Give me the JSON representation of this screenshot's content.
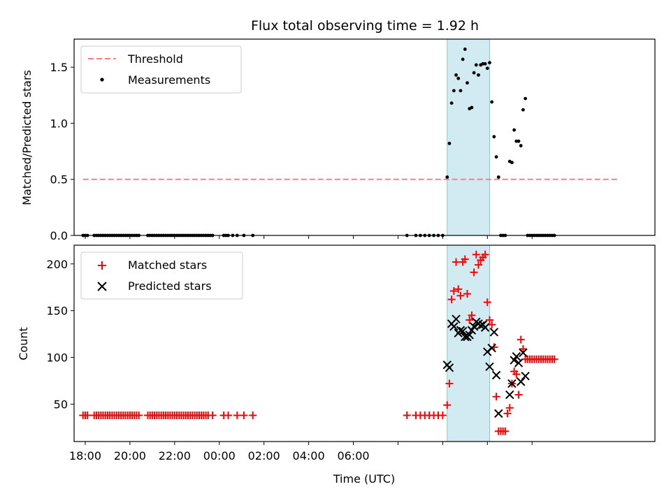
{
  "chart_data": [
    {
      "type": "scatter",
      "title": "Flux total observing time = 1.92 h",
      "xlabel": "",
      "ylabel": "Matched/Predicted stars",
      "xlim": [
        -6.5,
        19.5
      ],
      "ylim": [
        0,
        1.75
      ],
      "yticks": [
        0,
        0.5,
        1.0,
        1.5
      ],
      "ytick_labels": [
        "0.0",
        "0.5",
        "1.0",
        "1.5"
      ],
      "legend_position": "top-left",
      "shaded_span": {
        "x_start": 10.2,
        "x_end": 12.1,
        "color": "#add8e6"
      },
      "threshold": {
        "name": "Threshold",
        "value": 0.5,
        "x_start": -6.1,
        "x_end": 17.9,
        "color": "#ff7f7f",
        "style": "dashed"
      },
      "series": [
        {
          "name": "Measurements",
          "color": "#000000",
          "marker": "dot",
          "points": [
            [
              -6.1,
              0
            ],
            [
              -6.0,
              0
            ],
            [
              -5.9,
              0
            ],
            [
              -5.6,
              0
            ],
            [
              -5.5,
              0
            ],
            [
              -5.4,
              0
            ],
            [
              -5.3,
              0
            ],
            [
              -5.2,
              0
            ],
            [
              -5.1,
              0
            ],
            [
              -5.0,
              0
            ],
            [
              -4.9,
              0
            ],
            [
              -4.8,
              0
            ],
            [
              -4.7,
              0
            ],
            [
              -4.6,
              0
            ],
            [
              -4.5,
              0
            ],
            [
              -4.4,
              0
            ],
            [
              -4.3,
              0
            ],
            [
              -4.2,
              0
            ],
            [
              -4.1,
              0
            ],
            [
              -4.0,
              0
            ],
            [
              -3.9,
              0
            ],
            [
              -3.8,
              0
            ],
            [
              -3.7,
              0
            ],
            [
              -3.6,
              0
            ],
            [
              -3.2,
              0
            ],
            [
              -3.1,
              0
            ],
            [
              -3.0,
              0
            ],
            [
              -2.9,
              0
            ],
            [
              -2.6,
              0
            ],
            [
              -2.5,
              0
            ],
            [
              -2.4,
              0
            ],
            [
              -2.3,
              0
            ],
            [
              -2.2,
              0
            ],
            [
              -2.1,
              0
            ],
            [
              -2.0,
              0
            ],
            [
              -1.9,
              0
            ],
            [
              -1.8,
              0
            ],
            [
              -1.7,
              0
            ],
            [
              -1.6,
              0
            ],
            [
              -1.5,
              0
            ],
            [
              -1.4,
              0
            ],
            [
              -1.3,
              0
            ],
            [
              -1.2,
              0
            ],
            [
              -1.1,
              0
            ],
            [
              -1.0,
              0
            ],
            [
              -0.9,
              0
            ],
            [
              -0.7,
              0
            ],
            [
              -0.5,
              0
            ],
            [
              -0.3,
              0
            ],
            [
              -2.7,
              0
            ],
            [
              0.2,
              0
            ],
            [
              0.3,
              0
            ],
            [
              0.4,
              0
            ],
            [
              0.6,
              0
            ],
            [
              0.8,
              0
            ],
            [
              -0.6,
              0
            ],
            [
              -0.4,
              0
            ],
            [
              -0.8,
              0
            ],
            [
              1.1,
              0
            ],
            [
              1.5,
              0
            ],
            [
              8.4,
              0
            ],
            [
              8.8,
              0
            ],
            [
              9.0,
              0
            ],
            [
              9.2,
              0
            ],
            [
              9.4,
              0
            ],
            [
              9.6,
              0
            ],
            [
              9.8,
              0
            ],
            [
              10.0,
              0
            ],
            [
              -2.8,
              0
            ],
            [
              10.2,
              0.52
            ],
            [
              10.3,
              0.82
            ],
            [
              10.4,
              1.18
            ],
            [
              10.5,
              1.29
            ],
            [
              10.6,
              1.43
            ],
            [
              10.7,
              1.4
            ],
            [
              10.8,
              1.29
            ],
            [
              10.9,
              1.57
            ],
            [
              11.0,
              1.66
            ],
            [
              11.1,
              1.36
            ],
            [
              11.2,
              1.13
            ],
            [
              11.3,
              1.14
            ],
            [
              11.4,
              1.45
            ],
            [
              11.5,
              1.52
            ],
            [
              11.6,
              1.43
            ],
            [
              11.7,
              1.52
            ],
            [
              11.8,
              1.53
            ],
            [
              11.9,
              1.53
            ],
            [
              12.0,
              1.49
            ],
            [
              12.1,
              1.54
            ],
            [
              12.2,
              1.19
            ],
            [
              12.3,
              0.88
            ],
            [
              12.4,
              0.7
            ],
            [
              12.5,
              0.52
            ],
            [
              12.6,
              0
            ],
            [
              12.7,
              0
            ],
            [
              12.8,
              0
            ],
            [
              13.0,
              0.66
            ],
            [
              13.1,
              0.65
            ],
            [
              13.2,
              0.94
            ],
            [
              13.3,
              0.84
            ],
            [
              13.4,
              0.84
            ],
            [
              13.5,
              0.8
            ],
            [
              13.6,
              1.12
            ],
            [
              13.7,
              1.22
            ],
            [
              13.8,
              0
            ],
            [
              13.9,
              0
            ],
            [
              14.0,
              0
            ],
            [
              14.1,
              0
            ],
            [
              14.2,
              0
            ],
            [
              14.3,
              0
            ],
            [
              14.4,
              0
            ],
            [
              14.5,
              0
            ],
            [
              14.6,
              0
            ],
            [
              14.7,
              0
            ],
            [
              14.8,
              0
            ],
            [
              14.9,
              0
            ],
            [
              15.0,
              0
            ]
          ]
        }
      ]
    },
    {
      "type": "scatter",
      "title": "",
      "xlabel": "Time (UTC)",
      "ylabel": "Count",
      "xlim": [
        -6.5,
        19.5
      ],
      "ylim": [
        10,
        220
      ],
      "yticks": [
        50,
        100,
        150,
        200
      ],
      "ytick_labels": [
        "50",
        "100",
        "150",
        "200"
      ],
      "xticks": [
        -6,
        -4,
        -2,
        0,
        2,
        4,
        6,
        8,
        10,
        12,
        14
      ],
      "xtick_labels": [
        "18:00",
        "20:00",
        "22:00",
        "00:00",
        "02:00",
        "04:00",
        "06:00"
      ],
      "xtick_label_positions": [
        -6,
        -4,
        -2,
        0,
        2,
        4,
        6
      ],
      "legend_position": "top-left",
      "shaded_span": {
        "x_start": 10.2,
        "x_end": 12.1,
        "color": "#add8e6"
      },
      "series": [
        {
          "name": "Matched stars",
          "color": "#ff0000",
          "marker": "plus",
          "points": [
            [
              -6.1,
              38
            ],
            [
              -6.0,
              38
            ],
            [
              -5.9,
              38
            ],
            [
              -5.6,
              38
            ],
            [
              -5.5,
              38
            ],
            [
              -5.4,
              38
            ],
            [
              -5.3,
              38
            ],
            [
              -5.2,
              38
            ],
            [
              -5.1,
              38
            ],
            [
              -5.0,
              38
            ],
            [
              -4.9,
              38
            ],
            [
              -4.8,
              38
            ],
            [
              -4.7,
              38
            ],
            [
              -4.6,
              38
            ],
            [
              -4.5,
              38
            ],
            [
              -4.4,
              38
            ],
            [
              -4.3,
              38
            ],
            [
              -4.2,
              38
            ],
            [
              -4.1,
              38
            ],
            [
              -4.0,
              38
            ],
            [
              -3.9,
              38
            ],
            [
              -3.8,
              38
            ],
            [
              -3.7,
              38
            ],
            [
              -3.6,
              38
            ],
            [
              -3.2,
              38
            ],
            [
              -3.1,
              38
            ],
            [
              -3.0,
              38
            ],
            [
              -2.9,
              38
            ],
            [
              -2.8,
              38
            ],
            [
              -2.7,
              38
            ],
            [
              -2.6,
              38
            ],
            [
              -2.5,
              38
            ],
            [
              -2.4,
              38
            ],
            [
              -2.3,
              38
            ],
            [
              -2.2,
              38
            ],
            [
              -2.1,
              38
            ],
            [
              -2.0,
              38
            ],
            [
              -1.9,
              38
            ],
            [
              -1.8,
              38
            ],
            [
              -1.7,
              38
            ],
            [
              -1.6,
              38
            ],
            [
              -1.5,
              38
            ],
            [
              -1.4,
              38
            ],
            [
              -1.3,
              38
            ],
            [
              -1.2,
              38
            ],
            [
              -1.1,
              38
            ],
            [
              -1.0,
              38
            ],
            [
              -0.9,
              38
            ],
            [
              -0.8,
              38
            ],
            [
              -0.7,
              38
            ],
            [
              -0.6,
              38
            ],
            [
              -0.5,
              38
            ],
            [
              -0.3,
              38
            ],
            [
              0.2,
              38
            ],
            [
              0.4,
              38
            ],
            [
              0.8,
              38
            ],
            [
              1.1,
              38
            ],
            [
              1.5,
              38
            ],
            [
              8.4,
              38
            ],
            [
              8.8,
              38
            ],
            [
              9.0,
              38
            ],
            [
              9.2,
              38
            ],
            [
              9.4,
              38
            ],
            [
              9.6,
              38
            ],
            [
              9.8,
              38
            ],
            [
              10.0,
              38
            ],
            [
              10.2,
              49
            ],
            [
              10.3,
              72
            ],
            [
              10.4,
              162
            ],
            [
              10.5,
              171
            ],
            [
              10.6,
              202
            ],
            [
              10.7,
              173
            ],
            [
              10.8,
              166
            ],
            [
              10.9,
              202
            ],
            [
              11.0,
              205
            ],
            [
              11.1,
              168
            ],
            [
              11.2,
              140
            ],
            [
              11.3,
              145
            ],
            [
              11.4,
              191
            ],
            [
              11.5,
              210
            ],
            [
              11.6,
              199
            ],
            [
              11.7,
              204
            ],
            [
              11.8,
              207
            ],
            [
              11.9,
              210
            ],
            [
              12.0,
              159
            ],
            [
              12.1,
              140
            ],
            [
              12.2,
              135
            ],
            [
              12.3,
              111
            ],
            [
              12.4,
              58
            ],
            [
              12.5,
              21
            ],
            [
              12.6,
              21
            ],
            [
              12.7,
              21
            ],
            [
              12.8,
              21
            ],
            [
              12.9,
              40
            ],
            [
              13.0,
              46
            ],
            [
              13.1,
              72
            ],
            [
              13.2,
              85
            ],
            [
              13.3,
              82
            ],
            [
              13.4,
              60
            ],
            [
              13.5,
              119
            ],
            [
              13.6,
              109
            ],
            [
              13.7,
              98
            ],
            [
              13.8,
              98
            ],
            [
              13.9,
              98
            ],
            [
              14.0,
              98
            ],
            [
              14.1,
              98
            ],
            [
              14.2,
              98
            ],
            [
              14.3,
              98
            ],
            [
              14.4,
              98
            ],
            [
              14.5,
              98
            ],
            [
              14.6,
              98
            ],
            [
              14.7,
              98
            ],
            [
              14.8,
              98
            ],
            [
              14.9,
              98
            ],
            [
              15.0,
              98
            ]
          ]
        },
        {
          "name": "Predicted stars",
          "color": "#000000",
          "marker": "x",
          "points": [
            [
              10.2,
              92
            ],
            [
              10.3,
              89
            ],
            [
              10.4,
              136
            ],
            [
              10.5,
              133
            ],
            [
              10.6,
              141
            ],
            [
              10.7,
              126
            ],
            [
              10.8,
              129
            ],
            [
              10.9,
              128
            ],
            [
              11.0,
              122
            ],
            [
              11.1,
              122
            ],
            [
              11.2,
              124
            ],
            [
              11.3,
              129
            ],
            [
              11.4,
              133
            ],
            [
              11.5,
              138
            ],
            [
              11.6,
              136
            ],
            [
              11.7,
              134
            ],
            [
              11.8,
              135
            ],
            [
              11.9,
              132
            ],
            [
              12.0,
              106
            ],
            [
              12.1,
              90
            ],
            [
              12.2,
              110
            ],
            [
              12.3,
              127
            ],
            [
              12.4,
              81
            ],
            [
              12.5,
              40
            ],
            [
              13.0,
              60
            ],
            [
              13.1,
              72
            ],
            [
              13.2,
              97
            ],
            [
              13.3,
              101
            ],
            [
              13.4,
              94
            ],
            [
              13.5,
              74
            ],
            [
              13.6,
              105
            ],
            [
              13.7,
              80
            ]
          ]
        }
      ]
    }
  ]
}
